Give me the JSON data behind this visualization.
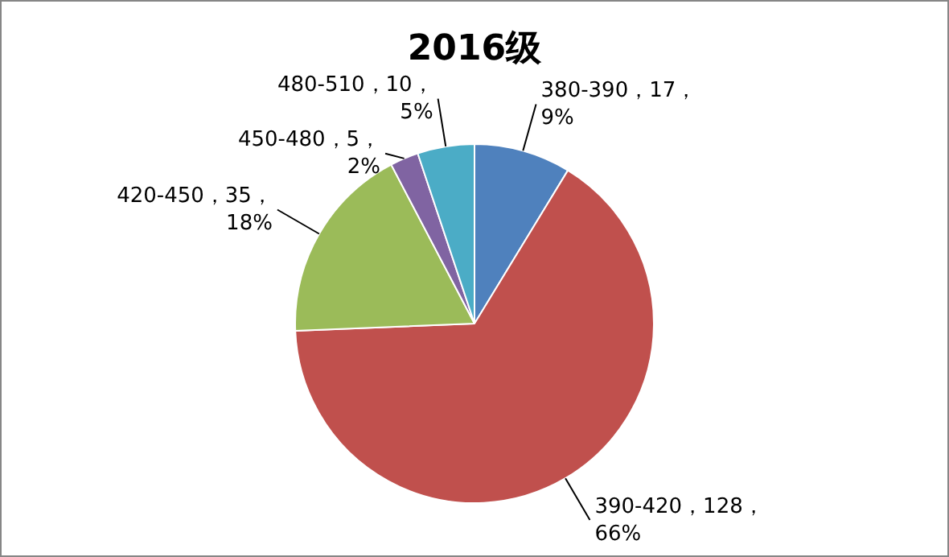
{
  "chart_data": {
    "type": "pie",
    "title": "2016级",
    "categories": [
      "380-390",
      "390-420",
      "420-450",
      "450-480",
      "480-510"
    ],
    "values": [
      17,
      128,
      35,
      5,
      10
    ],
    "colors": [
      "#4f81bd",
      "#c0504d",
      "#9bbb59",
      "#8064a2",
      "#4bacc6"
    ],
    "value_labels": [
      "17，9%",
      "128，66%",
      "35，18%",
      "5，2%",
      "10，5%"
    ],
    "legend": false
  }
}
